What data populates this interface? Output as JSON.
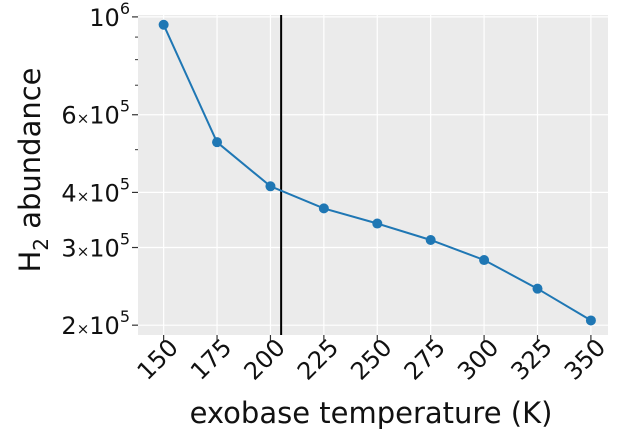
{
  "chart_data": {
    "type": "line",
    "xlabel": "exobase temperature (K)",
    "ylabel_main": "H",
    "ylabel_sub": "2",
    "ylabel_rest": " abundance",
    "x": [
      150,
      175,
      200,
      225,
      250,
      275,
      300,
      325,
      350
    ],
    "y": [
      960000,
      520000,
      413000,
      368000,
      340000,
      312000,
      281000,
      242000,
      205000
    ],
    "xlim": [
      138,
      358
    ],
    "ylim": [
      190000,
      1010000
    ],
    "y_scale": "log",
    "x_ticks": [
      150,
      175,
      200,
      225,
      250,
      275,
      300,
      325,
      350
    ],
    "x_tick_labels": [
      "150",
      "175",
      "200",
      "225",
      "250",
      "275",
      "300",
      "325",
      "350"
    ],
    "y_ticks": [
      {
        "value": 200000,
        "mantissa": "2",
        "base": "10",
        "exp": "5"
      },
      {
        "value": 300000,
        "mantissa": "3",
        "base": "10",
        "exp": "5"
      },
      {
        "value": 400000,
        "mantissa": "4",
        "base": "10",
        "exp": "5"
      },
      {
        "value": 600000,
        "mantissa": "6",
        "base": "10",
        "exp": "5"
      },
      {
        "value": 1000000,
        "mantissa": "",
        "base": "10",
        "exp": "6"
      }
    ],
    "y_minor_ticks": [
      500000,
      700000,
      800000,
      900000
    ],
    "vline_x": 205,
    "grid": true,
    "colors": {
      "line": "#1f77b4",
      "background": "#ebebeb",
      "grid": "#ffffff",
      "vline": "#000000"
    }
  }
}
